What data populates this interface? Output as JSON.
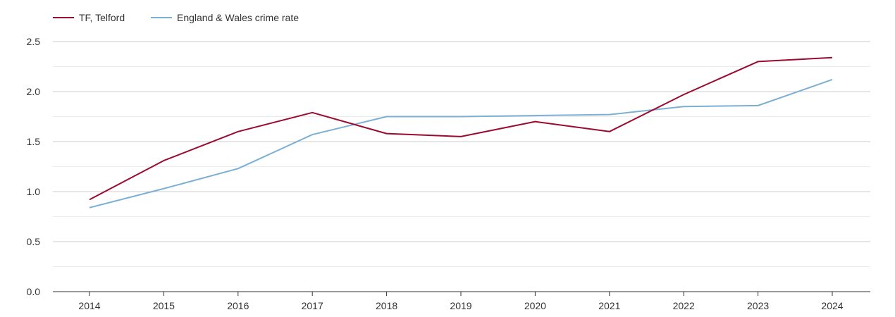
{
  "chart_data": {
    "type": "line",
    "title": "",
    "xlabel": "",
    "ylabel": "",
    "categories": [
      "2014",
      "2015",
      "2016",
      "2017",
      "2018",
      "2019",
      "2020",
      "2021",
      "2022",
      "2023",
      "2024"
    ],
    "ylim": [
      0,
      2.5
    ],
    "yticks": [
      "0.0",
      "0.5",
      "1.0",
      "1.5",
      "2.0",
      "2.5"
    ],
    "ytick_values": [
      0,
      0.5,
      1.0,
      1.5,
      2.0,
      2.5
    ],
    "minor_gridlines": [
      0.25,
      0.75,
      1.25,
      1.75,
      2.25
    ],
    "grid": true,
    "legend_position": "top-left",
    "series": [
      {
        "name": "TF, Telford",
        "color": "#9b0a2f",
        "values": [
          0.92,
          1.31,
          1.6,
          1.79,
          1.58,
          1.55,
          1.7,
          1.6,
          1.97,
          2.3,
          2.34
        ]
      },
      {
        "name": "England & Wales crime rate",
        "color": "#7bafd4",
        "values": [
          0.84,
          1.03,
          1.23,
          1.57,
          1.75,
          1.75,
          1.76,
          1.77,
          1.85,
          1.86,
          2.12
        ]
      }
    ]
  }
}
